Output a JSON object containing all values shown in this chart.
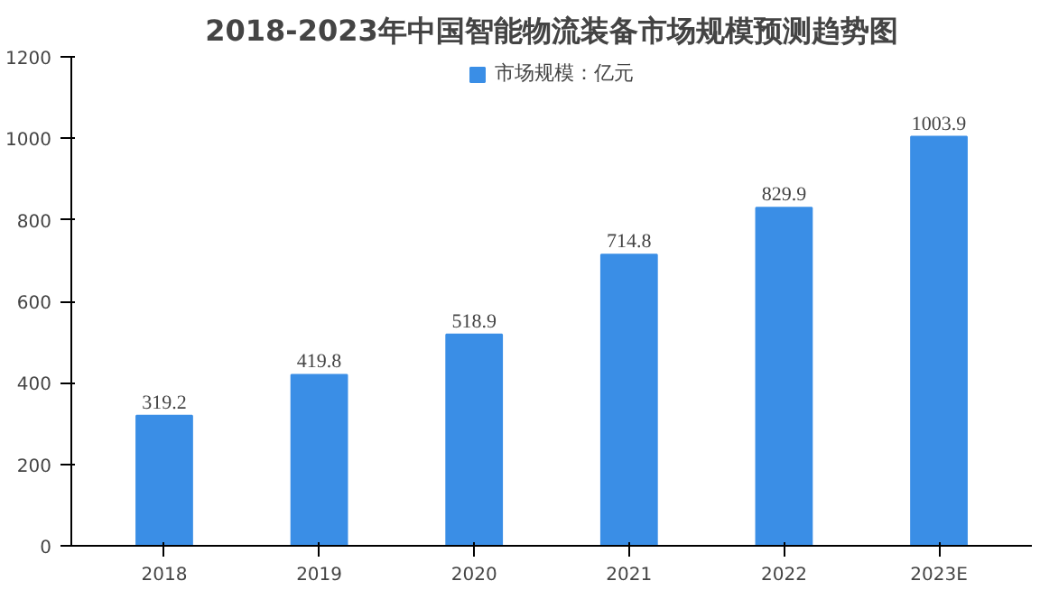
{
  "chart_data": {
    "type": "bar",
    "title": "2018-2023年中国智能物流装备市场规模预测趋势图",
    "categories": [
      "2018",
      "2019",
      "2020",
      "2021",
      "2022",
      "2023E"
    ],
    "series": [
      {
        "name": "市场规模：亿元",
        "color": "#3a8ee6",
        "values": [
          319.2,
          419.8,
          518.9,
          714.8,
          829.9,
          1003.9
        ]
      }
    ],
    "ylim": [
      0,
      1200
    ],
    "yticks": [
      0,
      200,
      400,
      600,
      800,
      1000,
      1200
    ],
    "grid": false,
    "legend": "top",
    "data_labels": true
  }
}
